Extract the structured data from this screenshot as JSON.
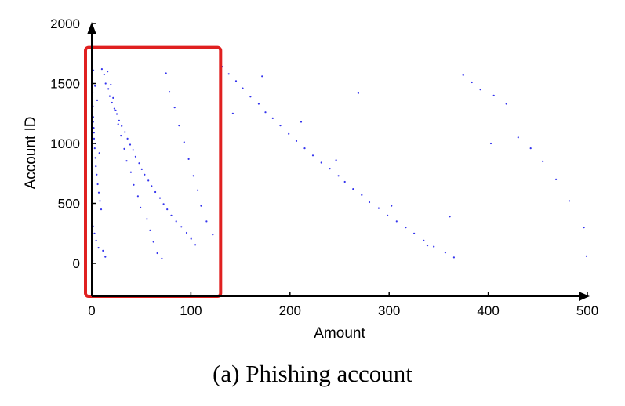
{
  "chart_data": {
    "type": "scatter",
    "title": "",
    "xlabel": "Amount",
    "ylabel": "Account ID",
    "xlim": [
      0,
      500
    ],
    "ylim": [
      -250,
      2000
    ],
    "xticks": [
      0,
      100,
      200,
      300,
      400,
      500
    ],
    "yticks": [
      0,
      500,
      1000,
      1500,
      2000
    ],
    "grid": false,
    "legend": "none",
    "point_color": "#3333ee",
    "highlight": {
      "x": [
        0,
        130
      ],
      "y": [
        -250,
        1800
      ],
      "color": "#e02020"
    },
    "series": [
      {
        "x": [
          0.2,
          0.5,
          0.8,
          1.1,
          1.5,
          2.0,
          2.4,
          3.0,
          3.6,
          4.2,
          5.0,
          6.0,
          7.1,
          8.3,
          9.5,
          0.4,
          1.2,
          2.8,
          4.4,
          6.8,
          0.3,
          0.9,
          1.6,
          3.3,
          5.5,
          0.6,
          1.4,
          2.2,
          3.9,
          7.7,
          10.2,
          12.5,
          14.0,
          16.8,
          18.1,
          20.4,
          22.9,
          25.3,
          27.6,
          30.2,
          33.5,
          36.1,
          38.8,
          41.7,
          44.2,
          47.9,
          50.5,
          53.3,
          57.1,
          60.4,
          64.2,
          68.8,
          72.5,
          76.1,
          80.3,
          85.2,
          90.4,
          95.7,
          100.2,
          104.5,
          11.3,
          13.7,
          15.9,
          19.2,
          21.6,
          24.1,
          26.7,
          29.4,
          32.8,
          35.2,
          39.5,
          42.3,
          46.6,
          49.1,
          55.7,
          58.9,
          62.3,
          66.1,
          70.7,
          74.9,
          78.4,
          83.6,
          88.1,
          93.2,
          97.8,
          102.6,
          106.9,
          110.4,
          115.8,
          122.1,
          131.5,
          138.2,
          145.6,
          152.3,
          160.1,
          168.4,
          175.2,
          182.6,
          190.3,
          198.7,
          206.5,
          214.8,
          223.1,
          231.6,
          240.2,
          248.9,
          255.3,
          263.7,
          272.4,
          280.1,
          289.5,
          298.3,
          307.6,
          316.8,
          325.2,
          334.9,
          345.1,
          356.7,
          365.4,
          374.8,
          383.5,
          392.1,
          405.6,
          418.3,
          430.2,
          442.8,
          455.1,
          468.4,
          481.7,
          496.5,
          142.3,
          171.8,
          211.2,
          246.5,
          268.9,
          302.4,
          338.6,
          361.2,
          402.7,
          499.1
        ],
        "y": [
          1650,
          1540,
          1420,
          1310,
          1220,
          1130,
          1040,
          960,
          880,
          810,
          740,
          660,
          590,
          520,
          450,
          380,
          310,
          250,
          190,
          130,
          70,
          20,
          1610,
          1480,
          1360,
          1270,
          1180,
          1090,
          1000,
          920,
          1620,
          1575,
          1500,
          1455,
          1395,
          1340,
          1290,
          1245,
          1190,
          1145,
          1095,
          1040,
          990,
          945,
          890,
          835,
          785,
          740,
          690,
          645,
          595,
          545,
          495,
          450,
          400,
          350,
          305,
          255,
          205,
          155,
          105,
          55,
          1600,
          1490,
          1380,
          1275,
          1160,
          1065,
          955,
          855,
          760,
          655,
          560,
          465,
          370,
          275,
          180,
          85,
          40,
          1585,
          1430,
          1300,
          1150,
          1010,
          870,
          730,
          610,
          480,
          350,
          240,
          1640,
          1580,
          1520,
          1460,
          1390,
          1330,
          1260,
          1210,
          1150,
          1080,
          1020,
          960,
          900,
          840,
          790,
          730,
          680,
          620,
          570,
          510,
          460,
          400,
          350,
          300,
          250,
          190,
          140,
          90,
          50,
          1570,
          1510,
          1450,
          1400,
          1330,
          1050,
          960,
          850,
          700,
          520,
          300,
          1250,
          1560,
          1180,
          860,
          1420,
          480,
          150,
          390,
          1000,
          60
        ]
      }
    ]
  },
  "caption": {
    "text": "(a)  Phishing account"
  }
}
